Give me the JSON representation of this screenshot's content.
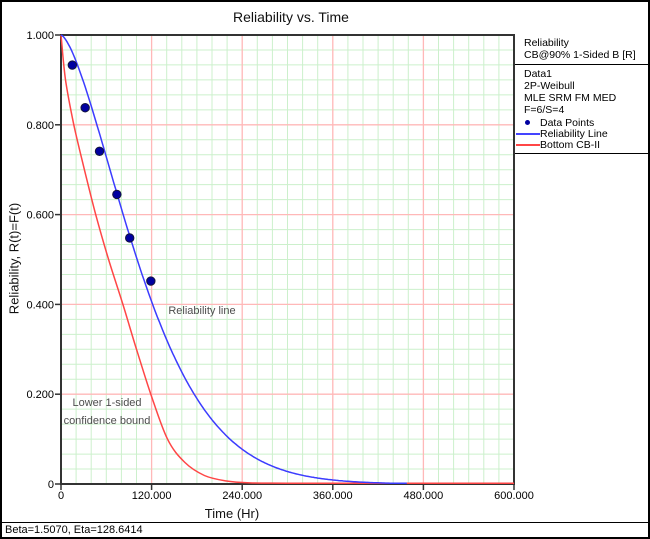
{
  "window": {
    "status_bar_text": "Beta=1.5070, Eta=128.6414"
  },
  "chart_data": {
    "type": "line",
    "title": "Reliability vs. Time",
    "xlabel": "Time (Hr)",
    "ylabel": "Reliability, R(t)=F(t)",
    "xlim": [
      0,
      600
    ],
    "ylim": [
      0,
      1
    ],
    "x_ticks": [
      0,
      120,
      240,
      360,
      480,
      600
    ],
    "x_tick_labels": [
      "0",
      "120.000",
      "240.000",
      "360.000",
      "480.000",
      "600.000"
    ],
    "y_ticks": [
      1.0,
      0.8,
      0.6,
      0.4,
      0.2,
      0
    ],
    "y_tick_labels": [
      "1.000",
      "0.800",
      "0.600",
      "0.400",
      "0.200",
      "0"
    ],
    "grid": {
      "minor_step_x": 20,
      "minor_step_y": 0.0333333,
      "major_step_x": 120,
      "major_step_y": 0.2,
      "minor_color": "#ccf0cc",
      "major_color": "#ffb8b8"
    },
    "axis_color": "#333333",
    "weibull_fit": {
      "beta": 1.507,
      "eta": 128.6414
    },
    "series": [
      {
        "name": "Data Points",
        "type": "scatter",
        "color": "#0000a0",
        "points": [
          [
            15,
            0.933
          ],
          [
            32,
            0.838
          ],
          [
            51,
            0.741
          ],
          [
            74,
            0.645
          ],
          [
            91,
            0.548
          ],
          [
            119,
            0.452
          ]
        ]
      },
      {
        "name": "Reliability Line",
        "type": "weibull",
        "color": "#3c3cff",
        "t_max": 458
      },
      {
        "name": "Bottom CB-II",
        "type": "curve",
        "color": "#ff4646",
        "points": [
          [
            0,
            1.0
          ],
          [
            6,
            0.9
          ],
          [
            17,
            0.8
          ],
          [
            31,
            0.7
          ],
          [
            46,
            0.6
          ],
          [
            63,
            0.5
          ],
          [
            82,
            0.4
          ],
          [
            100,
            0.3
          ],
          [
            119,
            0.2
          ],
          [
            141,
            0.1
          ],
          [
            164,
            0.048
          ],
          [
            190,
            0.019
          ],
          [
            218,
            0.007
          ],
          [
            250,
            0.0025
          ],
          [
            300,
            0.0008
          ],
          [
            420,
            0.0003
          ],
          [
            600,
            0.0001
          ]
        ]
      }
    ],
    "annotations": [
      {
        "lines": [
          "Reliability line"
        ]
      },
      {
        "lines": [
          "Lower 1-sided",
          "confidence bound"
        ]
      }
    ]
  },
  "legend": {
    "header_lines": [
      "Reliability",
      "CB@90% 1-Sided B [R]"
    ],
    "info_lines": [
      "Data1",
      "2P-Weibull",
      "MLE SRM FM MED",
      "F=6/S=4"
    ],
    "series": [
      {
        "marker": "dot",
        "color": "#0000a0",
        "label": "Data Points"
      },
      {
        "marker": "line",
        "color": "#4444ff",
        "label": "Reliability Line"
      },
      {
        "marker": "line",
        "color": "#ff4646",
        "label": "Bottom CB-II"
      }
    ]
  }
}
